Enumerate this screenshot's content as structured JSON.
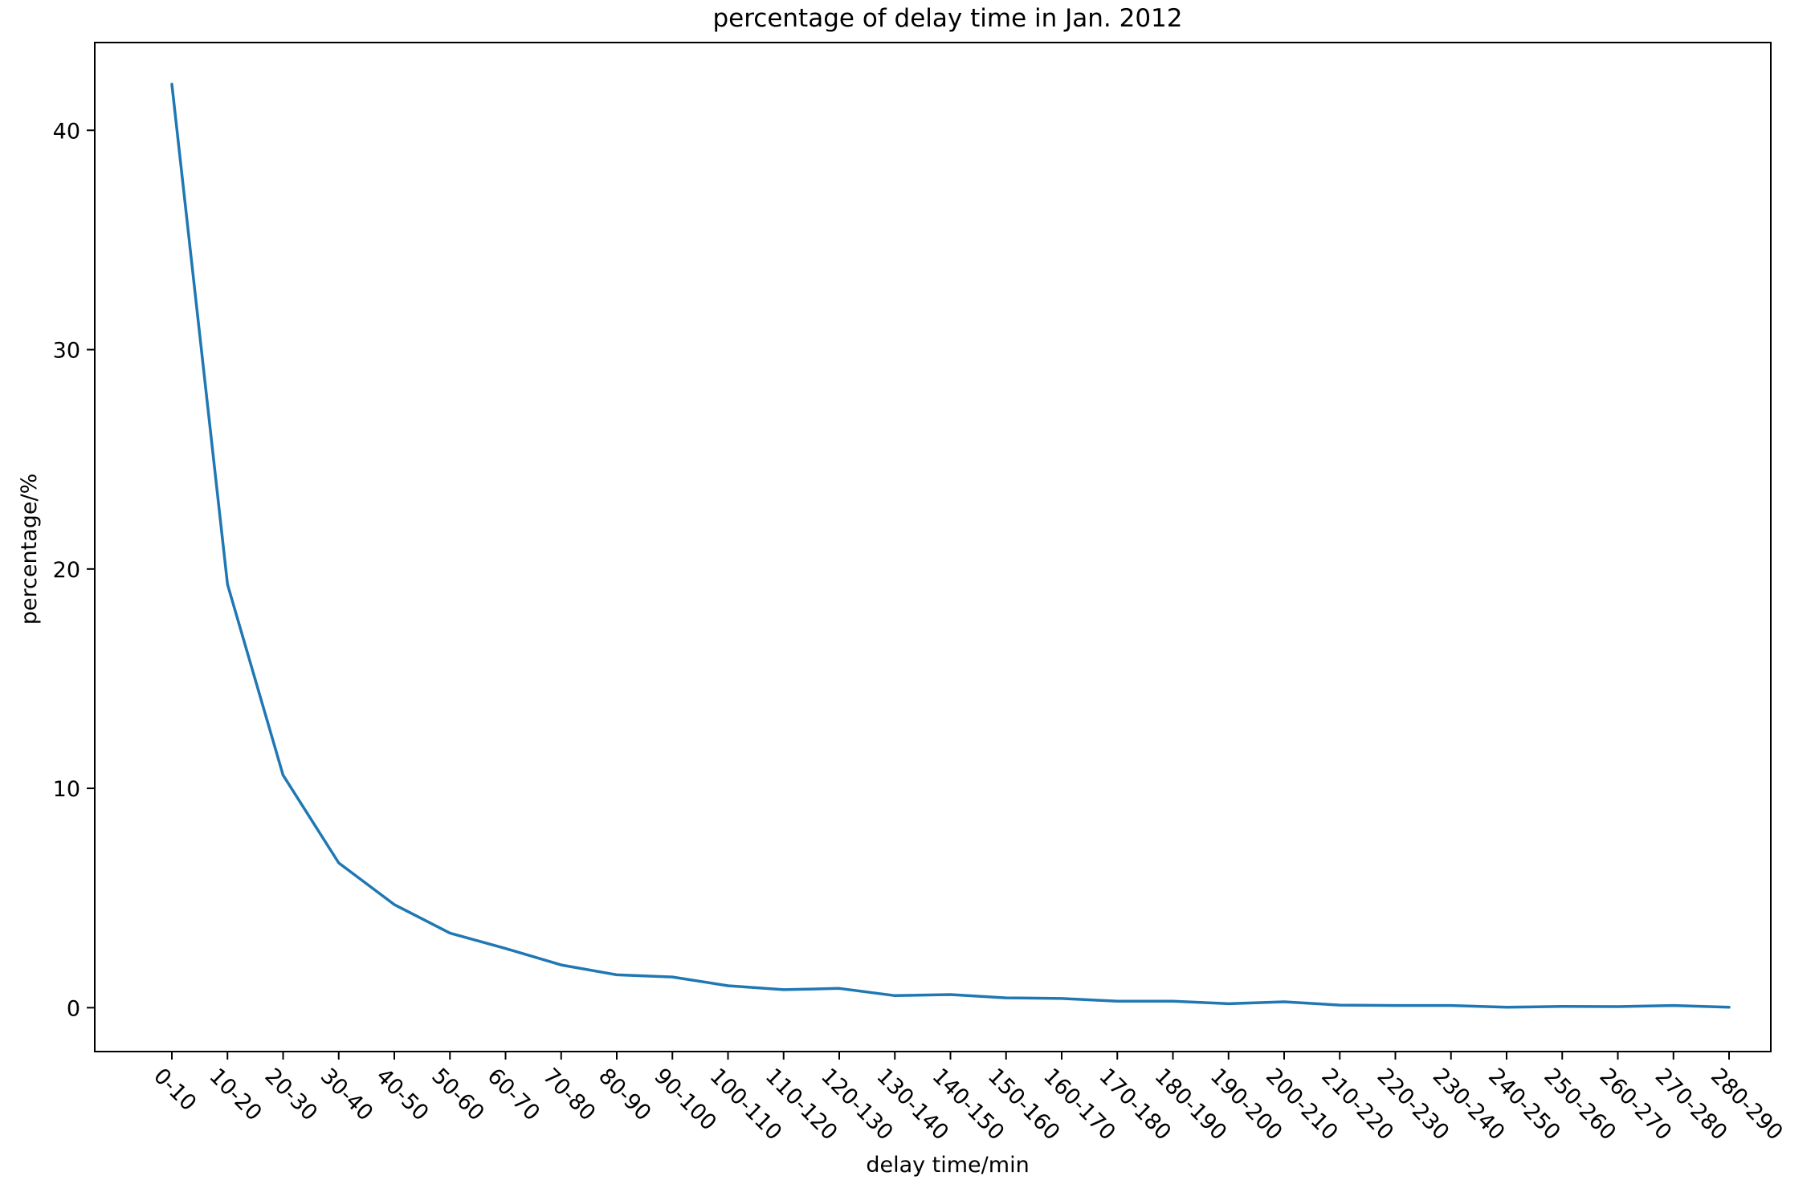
{
  "chart_data": {
    "type": "line",
    "title": "percentage of delay time in Jan. 2012",
    "xlabel": "delay time/min",
    "ylabel": "percentage/%",
    "categories": [
      "0-10",
      "10-20",
      "20-30",
      "30-40",
      "40-50",
      "50-60",
      "60-70",
      "70-80",
      "80-90",
      "90-100",
      "100-110",
      "110-120",
      "120-130",
      "130-140",
      "140-150",
      "150-160",
      "160-170",
      "170-180",
      "180-190",
      "190-200",
      "200-210",
      "210-220",
      "220-230",
      "230-240",
      "240-250",
      "250-260",
      "260-270",
      "270-280",
      "280-290"
    ],
    "values": [
      42.1,
      19.3,
      10.6,
      6.6,
      4.7,
      3.4,
      2.7,
      1.95,
      1.5,
      1.4,
      1.0,
      0.82,
      0.88,
      0.55,
      0.6,
      0.45,
      0.42,
      0.3,
      0.3,
      0.18,
      0.27,
      0.12,
      0.1,
      0.1,
      0.02,
      0.06,
      0.05,
      0.1,
      0.02
    ],
    "yticks": [
      0,
      10,
      20,
      30,
      40
    ],
    "ylim": [
      -2.0,
      44.0
    ],
    "grid": false,
    "line_color": "#1f77b4"
  }
}
